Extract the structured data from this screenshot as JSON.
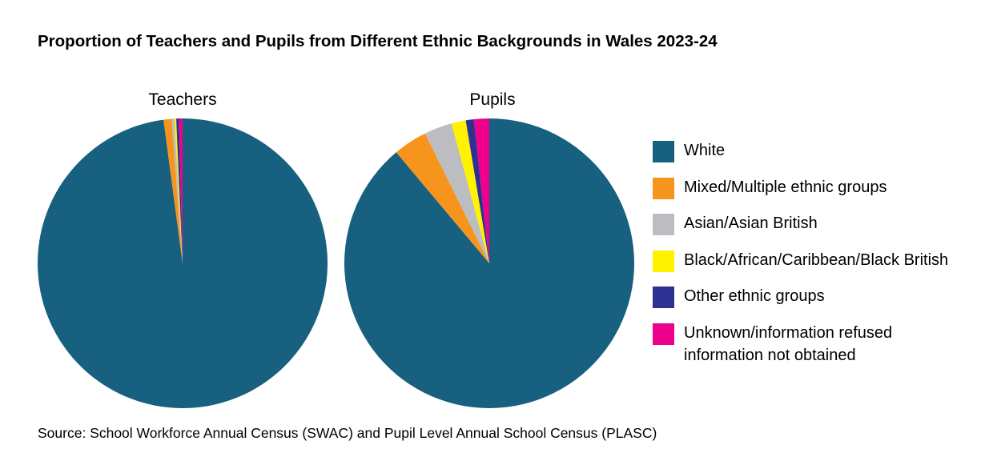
{
  "chart_title": "Proportion of Teachers and Pupils from Different Ethnic Backgrounds in Wales 2023-24",
  "source": "Source: School Workforce Annual Census (SWAC) and Pupil Level Annual School Census (PLASC)",
  "legend": [
    {
      "label": "White",
      "color": "#17607f"
    },
    {
      "label": "Mixed/Multiple ethnic groups",
      "color": "#f7941d"
    },
    {
      "label": "Asian/Asian British",
      "color": "#bcbdc0"
    },
    {
      "label": "Black/African/Caribbean/Black British",
      "color": "#fff200"
    },
    {
      "label": "Other ethnic groups",
      "color": "#2e3192"
    },
    {
      "label": "Unknown/information refused\ninformation not obtained",
      "color": "#ec008c"
    }
  ],
  "chart_data": [
    {
      "type": "pie",
      "title": "Teachers",
      "categories": [
        "White",
        "Mixed/Multiple ethnic groups",
        "Asian/Asian British",
        "Black/African/Caribbean/Black British",
        "Other ethnic groups",
        "Unknown/information refused\ninformation not obtained"
      ],
      "values": [
        97.9,
        0.9,
        0.3,
        0.2,
        0.3,
        0.4
      ]
    },
    {
      "type": "pie",
      "title": "Pupils",
      "categories": [
        "White",
        "Mixed/Multiple ethnic groups",
        "Asian/Asian British",
        "Black/African/Caribbean/Black British",
        "Other ethnic groups",
        "Unknown/information refused\ninformation not obtained"
      ],
      "values": [
        88.9,
        3.8,
        3.1,
        1.6,
        0.9,
        1.7
      ]
    }
  ]
}
